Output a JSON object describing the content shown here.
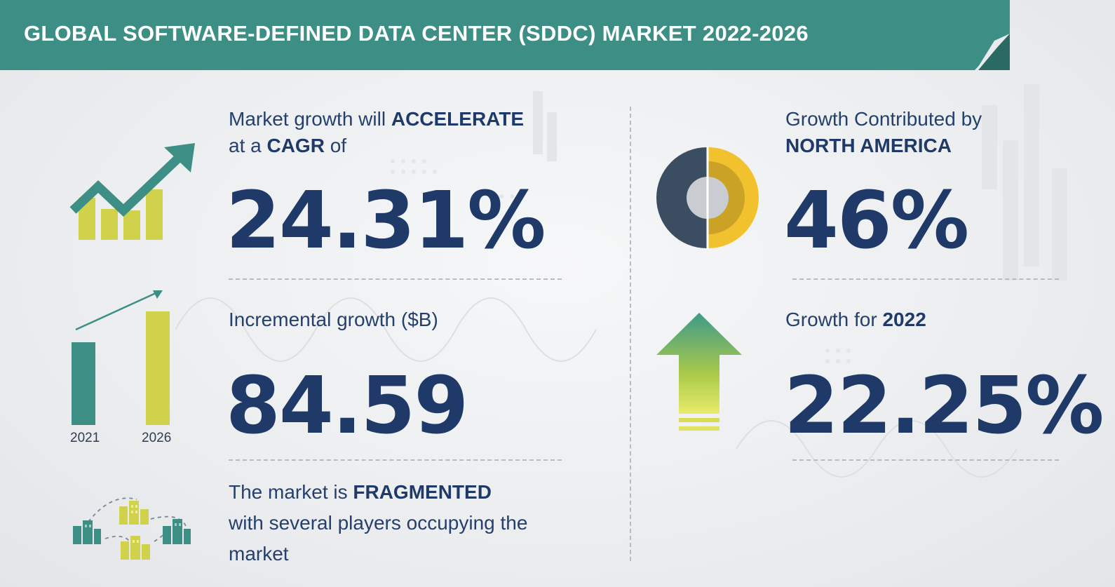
{
  "header": {
    "title": "GLOBAL SOFTWARE-DEFINED DATA CENTER (SDDC) MARKET 2022-2026"
  },
  "cagr": {
    "line1_prefix": "Market growth will",
    "line1_emph": "ACCELERATE",
    "line2_prefix": "at a",
    "line2_emph": "CAGR",
    "line2_suffix": "of",
    "value": "24.31%"
  },
  "incremental": {
    "label": "Incremental growth ($B)",
    "value": "84.59",
    "bar_years": [
      "2021",
      "2026"
    ]
  },
  "fragmented": {
    "line1_prefix": "The market is",
    "line1_emph": "FRAGMENTED",
    "line2": "with several players occupying the",
    "line3": "market"
  },
  "region": {
    "line1": "Growth Contributed by",
    "line2_emph": "NORTH AMERICA",
    "value": "46%"
  },
  "yoy": {
    "label_prefix": "Growth for",
    "label_emph": "2022",
    "value": "22.25%"
  },
  "colors": {
    "banner": "#3d8f85",
    "navy": "#1f3a68",
    "teal": "#3d8f85",
    "lime": "#cfd24a",
    "yellow": "#f2c12e",
    "donut_dark": "#3b4d60"
  },
  "icons": [
    "growth-chart-icon",
    "bar-comparison-icon",
    "buildings-network-icon",
    "donut-chart-icon",
    "up-arrow-icon"
  ]
}
